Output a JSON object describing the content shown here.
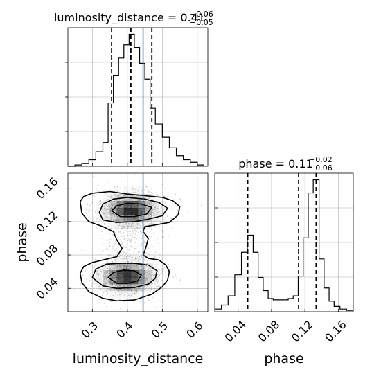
{
  "chart_data": {
    "type": "corner",
    "parameters": [
      "luminosity_distance",
      "phase"
    ],
    "truth": {
      "luminosity_distance": 0.445
    },
    "colors": {
      "hist": "#000000",
      "quantile": "#000000",
      "truth": "#4682b4",
      "grid": "#b0b0b0",
      "points": "#7f7f7f"
    },
    "panels": [
      {
        "id": "luminosity-distance-marginal",
        "kind": "histogram",
        "title": {
          "main": "luminosity_distance = 0.41",
          "sup": "+0.06",
          "sub": "−0.05"
        },
        "xlim": [
          0.23,
          0.63
        ],
        "ylim": [
          0,
          1.05
        ],
        "xticks": [
          0.3,
          0.4,
          0.5,
          0.6
        ],
        "quantiles": [
          0.355,
          0.41,
          0.47
        ],
        "bins": [
          {
            "x0": 0.23,
            "x1": 0.25,
            "h": 0.0
          },
          {
            "x0": 0.25,
            "x1": 0.27,
            "h": 0.01
          },
          {
            "x0": 0.27,
            "x1": 0.29,
            "h": 0.02
          },
          {
            "x0": 0.29,
            "x1": 0.31,
            "h": 0.05
          },
          {
            "x0": 0.31,
            "x1": 0.33,
            "h": 0.11
          },
          {
            "x0": 0.33,
            "x1": 0.345,
            "h": 0.18
          },
          {
            "x0": 0.345,
            "x1": 0.36,
            "h": 0.48
          },
          {
            "x0": 0.36,
            "x1": 0.375,
            "h": 0.69
          },
          {
            "x0": 0.375,
            "x1": 0.39,
            "h": 0.82
          },
          {
            "x0": 0.39,
            "x1": 0.405,
            "h": 0.92
          },
          {
            "x0": 0.405,
            "x1": 0.42,
            "h": 1.0
          },
          {
            "x0": 0.42,
            "x1": 0.435,
            "h": 0.9
          },
          {
            "x0": 0.435,
            "x1": 0.45,
            "h": 0.78
          },
          {
            "x0": 0.45,
            "x1": 0.465,
            "h": 0.66
          },
          {
            "x0": 0.465,
            "x1": 0.48,
            "h": 0.44
          },
          {
            "x0": 0.48,
            "x1": 0.5,
            "h": 0.32
          },
          {
            "x0": 0.5,
            "x1": 0.52,
            "h": 0.22
          },
          {
            "x0": 0.52,
            "x1": 0.54,
            "h": 0.14
          },
          {
            "x0": 0.54,
            "x1": 0.56,
            "h": 0.08
          },
          {
            "x0": 0.56,
            "x1": 0.58,
            "h": 0.05
          },
          {
            "x0": 0.58,
            "x1": 0.6,
            "h": 0.03
          },
          {
            "x0": 0.6,
            "x1": 0.62,
            "h": 0.01
          }
        ]
      },
      {
        "id": "joint-density",
        "kind": "2d-density",
        "xlim": [
          0.23,
          0.63
        ],
        "ylim": [
          0.012,
          0.178
        ],
        "xticks": [
          0.3,
          0.4,
          0.5,
          0.6
        ],
        "yticks": [
          0.04,
          0.08,
          0.12,
          0.16
        ],
        "xticklabels": [
          "0.3",
          "0.4",
          "0.5",
          "0.6"
        ],
        "yticklabels": [
          "0.04",
          "0.08",
          "0.12",
          "0.16"
        ],
        "xlabel": "luminosity_distance",
        "ylabel": "phase",
        "modes": [
          {
            "cx": 0.41,
            "cy": 0.134,
            "sx": 0.045,
            "sy": 0.011
          },
          {
            "cx": 0.4,
            "cy": 0.054,
            "sx": 0.045,
            "sy": 0.011
          }
        ],
        "contours": [
          [
            [
              0.265,
              0.144
            ],
            [
              0.275,
              0.15
            ],
            [
              0.3,
              0.154
            ],
            [
              0.35,
              0.156
            ],
            [
              0.4,
              0.153
            ],
            [
              0.45,
              0.151
            ],
            [
              0.5,
              0.149
            ],
            [
              0.53,
              0.145
            ],
            [
              0.55,
              0.138
            ],
            [
              0.545,
              0.128
            ],
            [
              0.52,
              0.119
            ],
            [
              0.48,
              0.116
            ],
            [
              0.45,
              0.114
            ],
            [
              0.445,
              0.108
            ],
            [
              0.46,
              0.1
            ],
            [
              0.455,
              0.092
            ],
            [
              0.45,
              0.085
            ],
            [
              0.445,
              0.08
            ],
            [
              0.46,
              0.076
            ],
            [
              0.49,
              0.074
            ],
            [
              0.51,
              0.068
            ],
            [
              0.52,
              0.06
            ],
            [
              0.515,
              0.05
            ],
            [
              0.5,
              0.042
            ],
            [
              0.47,
              0.033
            ],
            [
              0.42,
              0.026
            ],
            [
              0.37,
              0.025
            ],
            [
              0.33,
              0.028
            ],
            [
              0.29,
              0.036
            ],
            [
              0.27,
              0.047
            ],
            [
              0.265,
              0.058
            ],
            [
              0.275,
              0.066
            ],
            [
              0.3,
              0.071
            ],
            [
              0.33,
              0.074
            ],
            [
              0.37,
              0.078
            ],
            [
              0.385,
              0.088
            ],
            [
              0.37,
              0.098
            ],
            [
              0.36,
              0.108
            ],
            [
              0.33,
              0.114
            ],
            [
              0.29,
              0.12
            ],
            [
              0.27,
              0.13
            ],
            [
              0.265,
              0.144
            ]
          ],
          [
            [
              0.32,
              0.131
            ],
            [
              0.33,
              0.141
            ],
            [
              0.36,
              0.147
            ],
            [
              0.4,
              0.149
            ],
            [
              0.45,
              0.147
            ],
            [
              0.49,
              0.143
            ],
            [
              0.515,
              0.136
            ],
            [
              0.5,
              0.127
            ],
            [
              0.46,
              0.123
            ],
            [
              0.42,
              0.12
            ],
            [
              0.37,
              0.119
            ],
            [
              0.33,
              0.122
            ],
            [
              0.32,
              0.131
            ]
          ],
          [
            [
              0.355,
              0.133
            ],
            [
              0.37,
              0.139
            ],
            [
              0.4,
              0.142
            ],
            [
              0.44,
              0.141
            ],
            [
              0.47,
              0.137
            ],
            [
              0.455,
              0.129
            ],
            [
              0.42,
              0.126
            ],
            [
              0.38,
              0.126
            ],
            [
              0.355,
              0.133
            ]
          ],
          [
            [
              0.3,
              0.053
            ],
            [
              0.31,
              0.063
            ],
            [
              0.34,
              0.069
            ],
            [
              0.38,
              0.07
            ],
            [
              0.42,
              0.07
            ],
            [
              0.46,
              0.068
            ],
            [
              0.485,
              0.061
            ],
            [
              0.48,
              0.052
            ],
            [
              0.46,
              0.045
            ],
            [
              0.42,
              0.041
            ],
            [
              0.37,
              0.04
            ],
            [
              0.33,
              0.043
            ],
            [
              0.3,
              0.053
            ]
          ],
          [
            [
              0.345,
              0.053
            ],
            [
              0.36,
              0.059
            ],
            [
              0.39,
              0.062
            ],
            [
              0.42,
              0.061
            ],
            [
              0.44,
              0.056
            ],
            [
              0.43,
              0.049
            ],
            [
              0.4,
              0.046
            ],
            [
              0.37,
              0.046
            ],
            [
              0.345,
              0.053
            ]
          ]
        ]
      },
      {
        "id": "phase-marginal",
        "kind": "histogram",
        "title": {
          "main": "phase = 0.11",
          "sup": "+0.02",
          "sub": "−0.06"
        },
        "xlim": [
          0.012,
          0.178
        ],
        "ylim": [
          0,
          1.05
        ],
        "xticks": [
          0.04,
          0.08,
          0.12,
          0.16
        ],
        "xticklabels": [
          "0.04",
          "0.08",
          "0.12",
          "0.16"
        ],
        "xlabel": "phase",
        "quantiles": [
          0.0515,
          0.1125,
          0.1335
        ],
        "bins": [
          {
            "x0": 0.012,
            "x1": 0.02,
            "h": 0.02
          },
          {
            "x0": 0.02,
            "x1": 0.028,
            "h": 0.05
          },
          {
            "x0": 0.028,
            "x1": 0.036,
            "h": 0.12
          },
          {
            "x0": 0.036,
            "x1": 0.044,
            "h": 0.28
          },
          {
            "x0": 0.044,
            "x1": 0.051,
            "h": 0.45
          },
          {
            "x0": 0.051,
            "x1": 0.058,
            "h": 0.58
          },
          {
            "x0": 0.058,
            "x1": 0.064,
            "h": 0.45
          },
          {
            "x0": 0.064,
            "x1": 0.07,
            "h": 0.26
          },
          {
            "x0": 0.07,
            "x1": 0.076,
            "h": 0.16
          },
          {
            "x0": 0.076,
            "x1": 0.082,
            "h": 0.1
          },
          {
            "x0": 0.082,
            "x1": 0.088,
            "h": 0.09
          },
          {
            "x0": 0.088,
            "x1": 0.094,
            "h": 0.09
          },
          {
            "x0": 0.094,
            "x1": 0.1,
            "h": 0.09
          },
          {
            "x0": 0.1,
            "x1": 0.106,
            "h": 0.1
          },
          {
            "x0": 0.106,
            "x1": 0.112,
            "h": 0.12
          },
          {
            "x0": 0.112,
            "x1": 0.118,
            "h": 0.27
          },
          {
            "x0": 0.118,
            "x1": 0.124,
            "h": 0.56
          },
          {
            "x0": 0.124,
            "x1": 0.13,
            "h": 0.9
          },
          {
            "x0": 0.13,
            "x1": 0.137,
            "h": 1.0
          },
          {
            "x0": 0.137,
            "x1": 0.143,
            "h": 0.4
          },
          {
            "x0": 0.143,
            "x1": 0.149,
            "h": 0.18
          },
          {
            "x0": 0.149,
            "x1": 0.155,
            "h": 0.08
          },
          {
            "x0": 0.155,
            "x1": 0.162,
            "h": 0.04
          },
          {
            "x0": 0.162,
            "x1": 0.17,
            "h": 0.02
          },
          {
            "x0": 0.17,
            "x1": 0.178,
            "h": 0.01
          }
        ]
      }
    ]
  }
}
